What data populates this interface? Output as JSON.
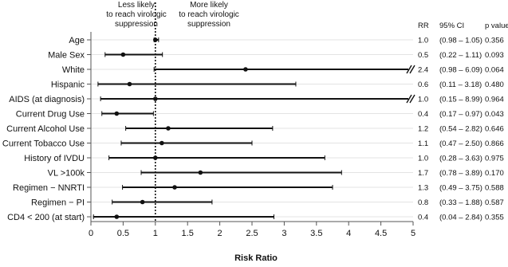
{
  "chart_data": {
    "type": "forest",
    "xlabel": "Risk Ratio",
    "xlim": [
      0,
      5
    ],
    "xticks": [
      "0",
      "0.5",
      "1",
      "1.5",
      "2",
      "2.5",
      "3",
      "3.5",
      "4",
      "4.5",
      "5"
    ],
    "reference_line": 1,
    "annotations": {
      "left": [
        "Less likely",
        "to reach virologic",
        "suppression"
      ],
      "right": [
        "More likely",
        "to reach virologic",
        "suppression"
      ]
    },
    "columns": {
      "rr": "RR",
      "ci": "95% CI",
      "p": "p value"
    },
    "rows": [
      {
        "label": "Age",
        "rr": 1.0,
        "lo": 0.98,
        "hi": 1.05,
        "rr_text": "1.0",
        "ci_text": "(0.98 – 1.05)",
        "p_text": "0.356",
        "truncated": false
      },
      {
        "label": "Male Sex",
        "rr": 0.5,
        "lo": 0.22,
        "hi": 1.11,
        "rr_text": "0.5",
        "ci_text": "(0.22 – 1.11)",
        "p_text": "0.093",
        "truncated": false
      },
      {
        "label": "White",
        "rr": 2.4,
        "lo": 0.98,
        "hi": 6.09,
        "rr_text": "2.4",
        "ci_text": "(0.98 – 6.09)",
        "p_text": "0.064",
        "truncated": true
      },
      {
        "label": "Hispanic",
        "rr": 0.6,
        "lo": 0.11,
        "hi": 3.18,
        "rr_text": "0.6",
        "ci_text": "(0.11 – 3.18)",
        "p_text": "0.480",
        "truncated": false
      },
      {
        "label": "AIDS (at diagnosis)",
        "rr": 1.0,
        "lo": 0.15,
        "hi": 8.99,
        "rr_text": "1.0",
        "ci_text": "(0.15 – 8.99)",
        "p_text": "0.964",
        "truncated": true
      },
      {
        "label": "Current Drug Use",
        "rr": 0.4,
        "lo": 0.17,
        "hi": 0.97,
        "rr_text": "0.4",
        "ci_text": "(0.17 – 0.97)",
        "p_text": "0.043",
        "truncated": false
      },
      {
        "label": "Current Alcohol Use",
        "rr": 1.2,
        "lo": 0.54,
        "hi": 2.82,
        "rr_text": "1.2",
        "ci_text": "(0.54 – 2.82)",
        "p_text": "0.646",
        "truncated": false
      },
      {
        "label": "Current Tobacco Use",
        "rr": 1.1,
        "lo": 0.47,
        "hi": 2.5,
        "rr_text": "1.1",
        "ci_text": "(0.47 – 2.50)",
        "p_text": "0.866",
        "truncated": false
      },
      {
        "label": "History of IVDU",
        "rr": 1.0,
        "lo": 0.28,
        "hi": 3.63,
        "rr_text": "1.0",
        "ci_text": "(0.28 – 3.63)",
        "p_text": "0.975",
        "truncated": false
      },
      {
        "label": "VL >100k",
        "rr": 1.7,
        "lo": 0.78,
        "hi": 3.89,
        "rr_text": "1.7",
        "ci_text": "(0.78 – 3.89)",
        "p_text": "0.170",
        "truncated": false
      },
      {
        "label": "Regimen − NNRTI",
        "rr": 1.3,
        "lo": 0.49,
        "hi": 3.75,
        "rr_text": "1.3",
        "ci_text": "(0.49 – 3.75)",
        "p_text": "0.588",
        "truncated": false
      },
      {
        "label": "Regimen − PI",
        "rr": 0.8,
        "lo": 0.33,
        "hi": 1.88,
        "rr_text": "0.8",
        "ci_text": "(0.33 – 1.88)",
        "p_text": "0.587",
        "truncated": false
      },
      {
        "label": "CD4 < 200 (at start)",
        "rr": 0.4,
        "lo": 0.04,
        "hi": 2.84,
        "rr_text": "0.4",
        "ci_text": "(0.04 – 2.84)",
        "p_text": "0.355",
        "truncated": false
      }
    ]
  }
}
